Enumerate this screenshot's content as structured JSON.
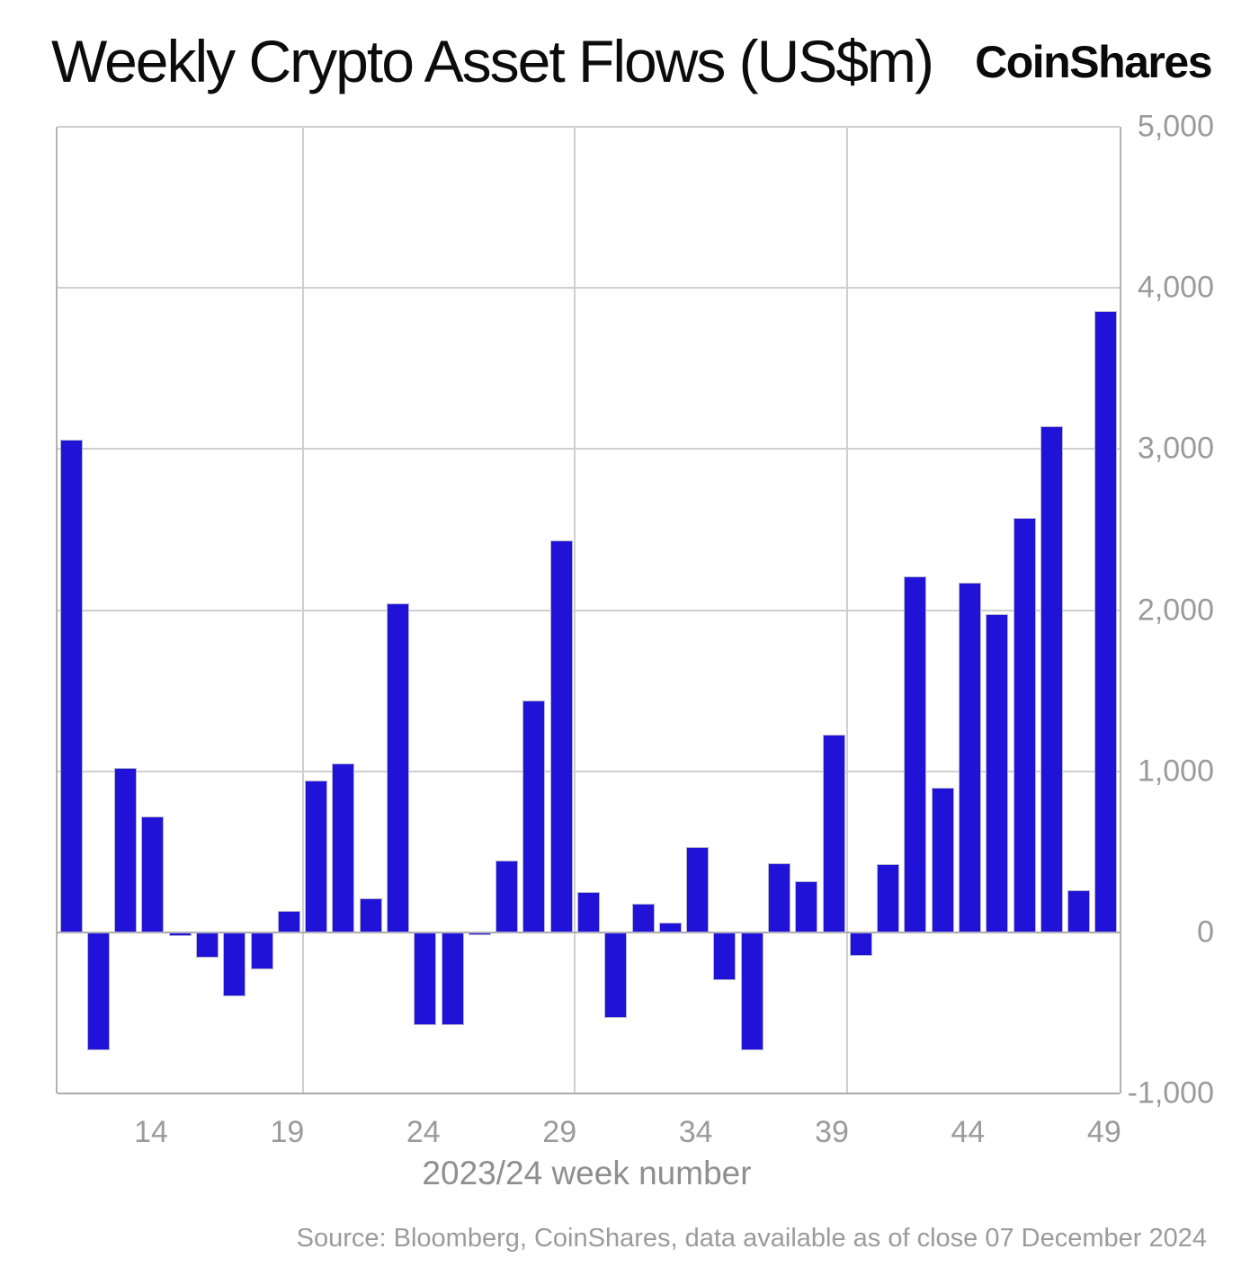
{
  "header": {
    "title": "Weekly Crypto Asset Flows (US$m)",
    "logo": "CoinShares"
  },
  "chart_data": {
    "type": "bar",
    "title": "Weekly Crypto Asset Flows (US$m)",
    "xlabel": "2023/24 week number",
    "ylabel": "",
    "ylim": [
      -1000,
      5000
    ],
    "grid": true,
    "legend": false,
    "bar_color": "#2012d6",
    "x": [
      11,
      12,
      13,
      14,
      15,
      16,
      17,
      18,
      19,
      20,
      21,
      22,
      23,
      24,
      25,
      26,
      27,
      28,
      29,
      30,
      31,
      32,
      33,
      34,
      35,
      36,
      37,
      38,
      39,
      40,
      41,
      42,
      43,
      44,
      45,
      46,
      47,
      48,
      49
    ],
    "values": [
      3060,
      -730,
      1020,
      720,
      -25,
      -160,
      -400,
      -230,
      135,
      945,
      1050,
      210,
      2040,
      -575,
      -575,
      -20,
      445,
      1440,
      2430,
      250,
      -530,
      175,
      60,
      530,
      -295,
      -730,
      430,
      315,
      1225,
      -145,
      425,
      2210,
      895,
      2170,
      1975,
      2570,
      3140,
      260,
      3855
    ],
    "x_ticks": [
      {
        "v": 14,
        "label": "14"
      },
      {
        "v": 19,
        "label": "19"
      },
      {
        "v": 24,
        "label": "24"
      },
      {
        "v": 29,
        "label": "29"
      },
      {
        "v": 34,
        "label": "34"
      },
      {
        "v": 39,
        "label": "39"
      },
      {
        "v": 44,
        "label": "44"
      },
      {
        "v": 49,
        "label": "49"
      }
    ],
    "y_ticks": [
      {
        "v": 5000,
        "label": "5,000"
      },
      {
        "v": 4000,
        "label": "4,000"
      },
      {
        "v": 3000,
        "label": "3,000"
      },
      {
        "v": 2000,
        "label": "2,000"
      },
      {
        "v": 1000,
        "label": "1,000"
      },
      {
        "v": 0,
        "label": "0"
      },
      {
        "v": -1000,
        "label": "-1,000"
      }
    ],
    "vgrid_boundary_indices": [
      9,
      19,
      29
    ]
  },
  "footer": {
    "source": "Source: Bloomberg, CoinShares, data available as of close 07 December 2024"
  }
}
